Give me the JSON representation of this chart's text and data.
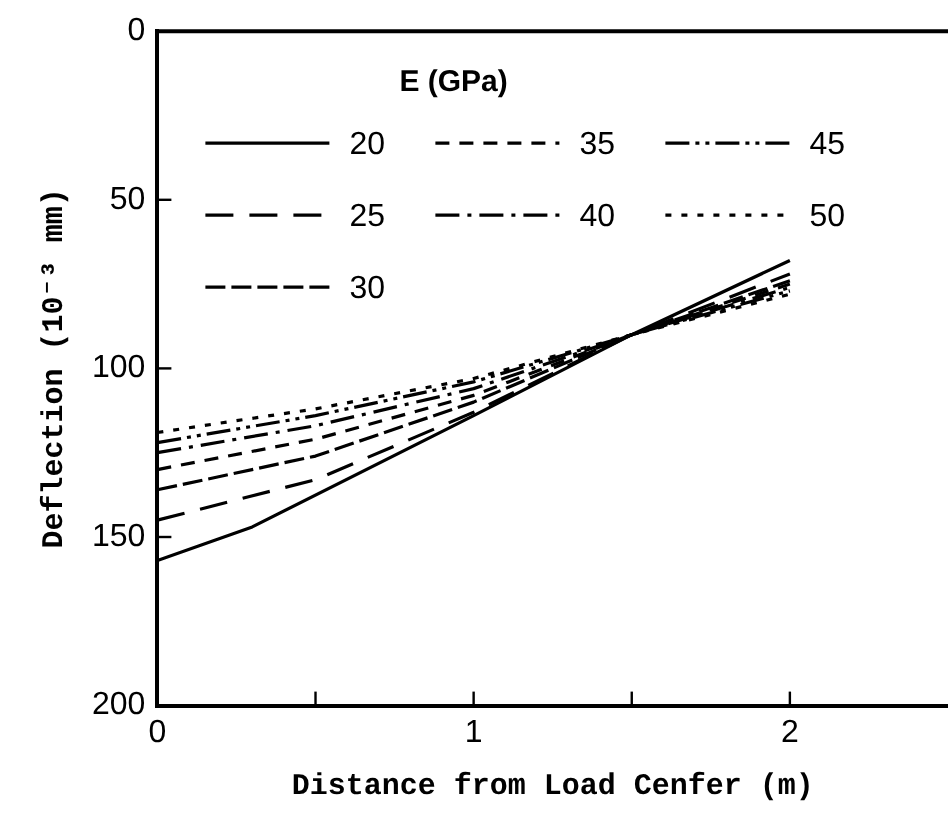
{
  "chart_data": {
    "type": "line",
    "xlabel": "Distance from Load Cenfer (m)",
    "ylabel": "Deflection (10⁻³ mm)",
    "legend_title": "E (GPa)",
    "x": [
      0,
      0.5,
      1,
      1.5,
      2
    ],
    "xlim": [
      0,
      2.5
    ],
    "xticks": [
      0,
      {
        "value": 0.5,
        "label": null
      },
      1,
      {
        "value": 1.5,
        "label": null
      },
      2
    ],
    "ylim": [
      200,
      0
    ],
    "yticks": [
      0,
      50,
      100,
      150,
      200
    ],
    "grid": false,
    "legend": "top",
    "marker": "none",
    "series": [
      {
        "name": "20",
        "color": "#000000",
        "line_style": "solid",
        "x": [
          0,
          0.3,
          1,
          1.5,
          2
        ],
        "values": [
          157,
          147,
          114,
          90,
          68
        ]
      },
      {
        "name": "25",
        "color": "#000000",
        "line_style": "dashed",
        "values": [
          145,
          133,
          113,
          90,
          72
        ]
      },
      {
        "name": "30",
        "color": "#000000",
        "line_style": "dashed",
        "values": [
          136,
          126,
          110,
          90,
          74
        ]
      },
      {
        "name": "35",
        "color": "#000000",
        "line_style": "dashed",
        "values": [
          130,
          121,
          108,
          90,
          75
        ]
      },
      {
        "name": "40",
        "color": "#000000",
        "line_style": "dashed",
        "values": [
          125,
          117,
          106,
          90,
          76
        ]
      },
      {
        "name": "45",
        "color": "#000000",
        "line_style": "dashed",
        "values": [
          122,
          114,
          104,
          90,
          77
        ]
      },
      {
        "name": "50",
        "color": "#000000",
        "line_style": "dotted",
        "values": [
          119,
          112,
          103,
          90,
          78
        ]
      }
    ]
  }
}
